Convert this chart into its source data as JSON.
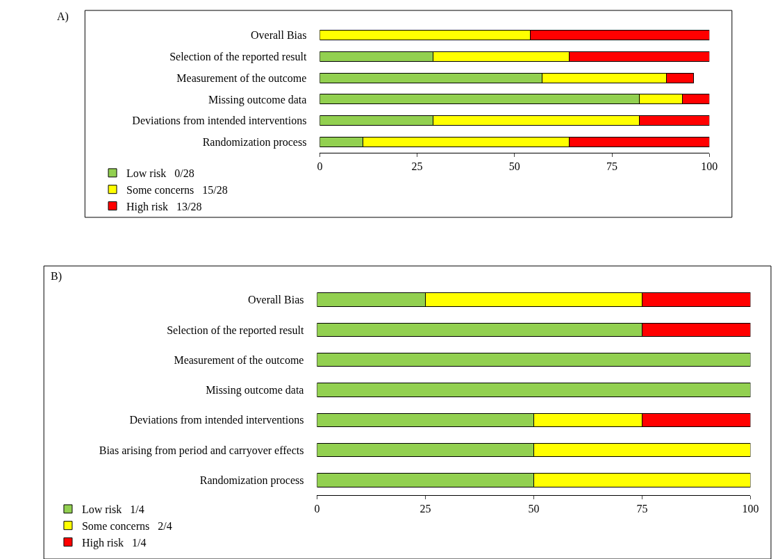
{
  "chart_data": [
    {
      "type": "bar",
      "title": "A)",
      "orientation": "horizontal",
      "stacked": true,
      "legend": "bottom left",
      "categories": [
        "Overall Bias",
        "Selection of the reported result",
        "Measurement of the outcome",
        "Missing outcome data",
        "Deviations from intended interventions",
        "Randomization process"
      ],
      "series": [
        {
          "name": "Low risk   0/28",
          "color": "#92d050",
          "values": [
            null,
            29,
            57,
            82,
            29,
            11
          ]
        },
        {
          "name": "Some concerns   15/28",
          "color": "#ffff00",
          "values": [
            54,
            35,
            32,
            11,
            53,
            53
          ]
        },
        {
          "name": "High risk   13/28",
          "color": "#ff0000",
          "values": [
            46,
            36,
            7,
            7,
            18,
            36
          ]
        }
      ],
      "xlim": [
        0,
        100
      ],
      "xticks": [
        0,
        25,
        50,
        75,
        100
      ]
    },
    {
      "type": "bar",
      "title": "B)",
      "orientation": "horizontal",
      "stacked": true,
      "legend": "bottom left",
      "categories": [
        "Overall Bias",
        "Selection of the reported result",
        "Measurement of the outcome",
        "Missing outcome data",
        "Deviations from intended interventions",
        "Bias arising from period and carryover effects",
        "Randomization process"
      ],
      "series": [
        {
          "name": "Low risk   1/4",
          "color": "#92d050",
          "values": [
            25,
            75,
            100,
            100,
            50,
            50,
            50
          ]
        },
        {
          "name": "Some concerns   2/4",
          "color": "#ffff00",
          "values": [
            50,
            null,
            null,
            null,
            25,
            50,
            50
          ]
        },
        {
          "name": "High risk   1/4",
          "color": "#ff0000",
          "values": [
            25,
            25,
            null,
            null,
            25,
            null,
            null
          ]
        }
      ],
      "xlim": [
        0,
        100
      ],
      "xticks": [
        0,
        25,
        50,
        75,
        100
      ]
    }
  ]
}
